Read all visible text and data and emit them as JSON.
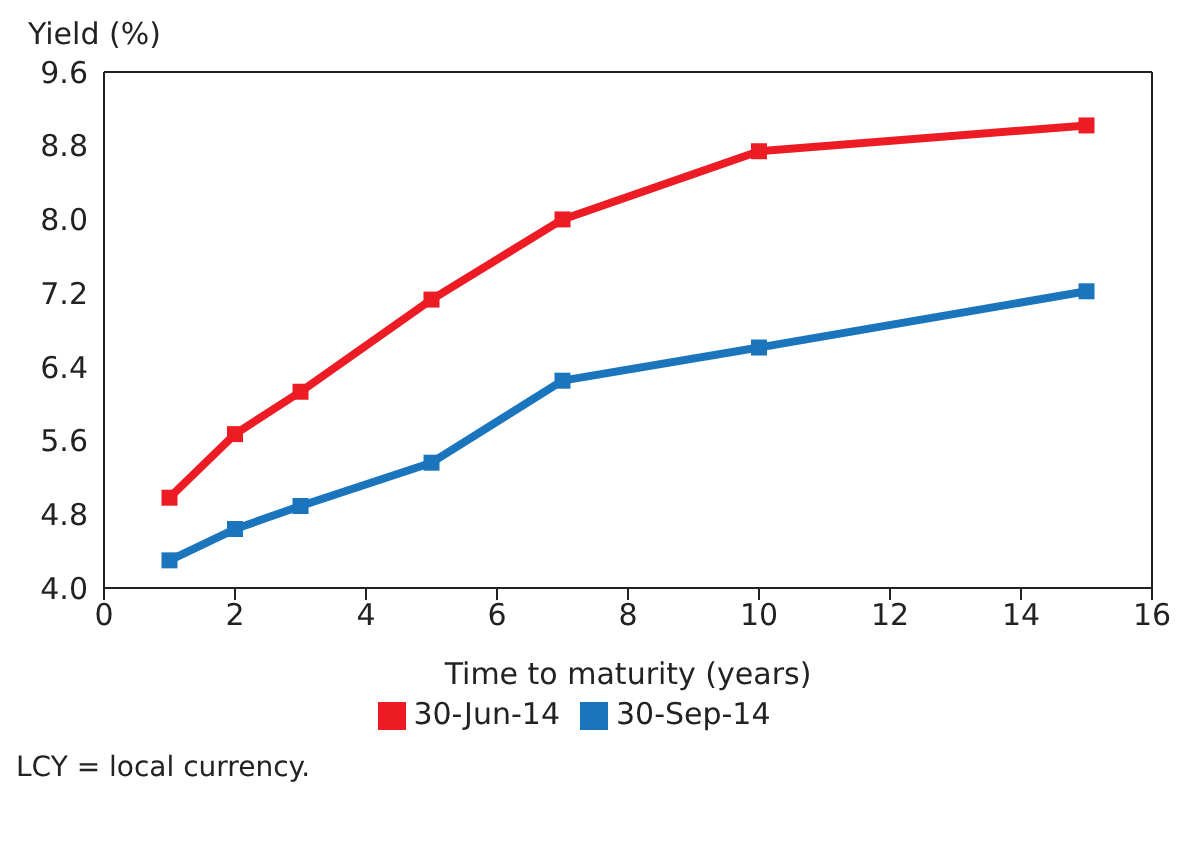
{
  "chart_data": {
    "type": "line",
    "ylabel": "Yield (%)",
    "xlabel": "Time to maturity (years)",
    "x": [
      1,
      2,
      3,
      5,
      7,
      10,
      15
    ],
    "series": [
      {
        "name": "30-Sep-14",
        "color": "#1b75bc",
        "values": [
          4.3,
          4.64,
          4.89,
          5.36,
          6.25,
          6.61,
          7.22
        ]
      },
      {
        "name": "30-Jun-14",
        "color": "#ed1c24",
        "values": [
          4.98,
          5.67,
          6.13,
          7.13,
          8.0,
          8.74,
          9.02
        ]
      }
    ],
    "xlim": [
      0,
      16
    ],
    "xticks": [
      0,
      2,
      4,
      6,
      8,
      10,
      12,
      14,
      16
    ],
    "ylim": [
      4.0,
      9.6
    ],
    "yticks": [
      {
        "value": 4.0,
        "label": "4.0"
      },
      {
        "value": 4.8,
        "label": "4.8"
      },
      {
        "value": 5.6,
        "label": "5.6"
      },
      {
        "value": 6.4,
        "label": "6.4"
      },
      {
        "value": 7.2,
        "label": "7.2"
      },
      {
        "value": 8.0,
        "label": "8.0"
      },
      {
        "value": 8.8,
        "label": "8.8"
      },
      {
        "value": 9.6,
        "label": "9.6"
      }
    ],
    "grid": false,
    "legend": "bottom",
    "marker": "square",
    "line_style": "solid",
    "annotations": [
      "LCY = local currency."
    ]
  }
}
